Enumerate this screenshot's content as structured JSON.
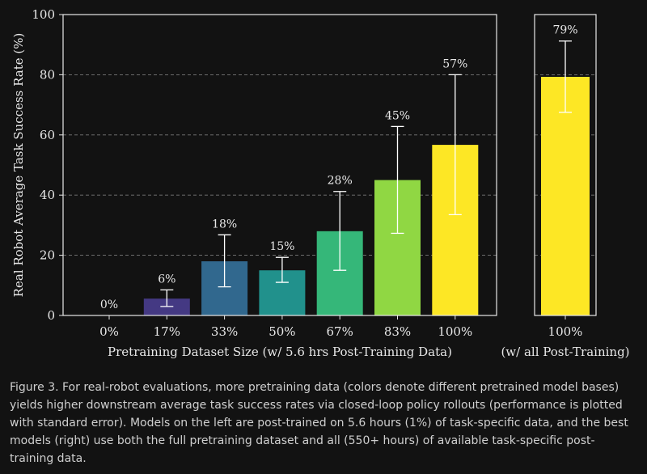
{
  "chart_data": [
    {
      "type": "bar",
      "title": "",
      "xlabel": "Pretraining Dataset Size (w/ 5.6 hrs Post-Training Data)",
      "ylabel": "Real Robot Average Task Success Rate (%)",
      "ylim": [
        0,
        100
      ],
      "yticks": [
        "0",
        "20",
        "40",
        "60",
        "80",
        "100"
      ],
      "grid": "horizontal dashed at 20, 40, 60, 80",
      "categories": [
        "0%",
        "17%",
        "33%",
        "50%",
        "67%",
        "83%",
        "100%"
      ],
      "values": [
        0,
        5.6,
        18,
        15,
        28,
        45,
        56.7
      ],
      "data_labels": [
        "0%",
        "6%",
        "18%",
        "15%",
        "28%",
        "45%",
        "57%"
      ],
      "error_low": [
        0,
        3,
        9.5,
        11,
        15,
        27.3,
        33.5
      ],
      "error_high": [
        0,
        8.5,
        26.8,
        19.3,
        41.2,
        62.8,
        80
      ],
      "colors": [
        "#440154",
        "#443983",
        "#31688e",
        "#21918c",
        "#35b779",
        "#90d743",
        "#fde725"
      ]
    },
    {
      "type": "bar",
      "title": "",
      "xlabel": "(w/ all Post-Training)",
      "ylabel": "",
      "ylim": [
        0,
        100
      ],
      "categories": [
        "100%"
      ],
      "values": [
        79.3
      ],
      "data_labels": [
        "79%"
      ],
      "error_low": [
        67.5
      ],
      "error_high": [
        91.2
      ],
      "colors": [
        "#fde725"
      ]
    }
  ],
  "caption": "Figure 3. For real-robot evaluations, more pretraining data (colors denote different pretrained model bases) yields higher downstream average task success rates via closed-loop policy rollouts (performance is plotted with standard error). Models on the left are post-trained on 5.6 hours (1%) of task-specific data, and the best models (right) use both the full pretraining dataset and all (550+ hours) of available task-specific post-training data."
}
